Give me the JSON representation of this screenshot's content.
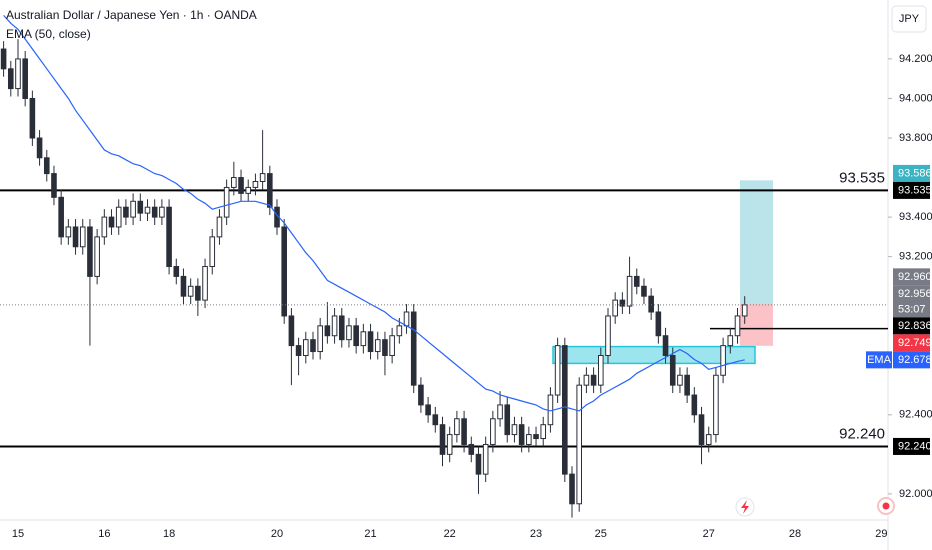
{
  "chart_data": {
    "type": "candlestick",
    "title": "Australian Dollar / Japanese Yen · 1h · OANDA",
    "subtitle": "EMA (50, close)",
    "currency": "JPY",
    "candle_color": "#2a2e39",
    "categories": [
      null,
      null,
      "15",
      null,
      null,
      null,
      null,
      null,
      null,
      null,
      null,
      null,
      null,
      null,
      "16",
      null,
      null,
      null,
      null,
      null,
      null,
      null,
      null,
      "18",
      null,
      null,
      null,
      null,
      null,
      null,
      null,
      null,
      null,
      null,
      null,
      null,
      null,
      null,
      "20",
      null,
      null,
      null,
      null,
      null,
      null,
      null,
      null,
      null,
      null,
      null,
      null,
      "21",
      null,
      null,
      null,
      null,
      null,
      null,
      null,
      null,
      null,
      null,
      "22",
      null,
      null,
      null,
      null,
      null,
      null,
      null,
      null,
      null,
      null,
      null,
      "23",
      null,
      null,
      null,
      null,
      null,
      null,
      null,
      null,
      "25",
      null,
      null,
      null,
      null,
      null,
      null,
      null,
      null,
      null,
      null,
      null,
      null,
      null,
      null,
      "27",
      null,
      null,
      null,
      null,
      null,
      null,
      null,
      null,
      null,
      null,
      null,
      "28",
      null,
      null,
      null,
      null,
      null,
      null,
      null,
      null,
      null,
      null,
      null,
      "29"
    ],
    "open": [
      94.25,
      94.15,
      94.05,
      94.2,
      94.0,
      93.8,
      93.7,
      93.62,
      93.5,
      93.3,
      93.35,
      93.25,
      93.35,
      93.1,
      93.3,
      93.4,
      93.35,
      93.45,
      93.4,
      93.48,
      93.42,
      93.45,
      93.4,
      93.45,
      93.15,
      93.1,
      93.0,
      93.05,
      92.98,
      93.15,
      93.3,
      93.4,
      93.55,
      93.6,
      93.52,
      93.55,
      93.58,
      93.62,
      93.45,
      93.35,
      92.9,
      92.75,
      92.7,
      92.78,
      92.72,
      92.85,
      92.8,
      92.9,
      92.78,
      92.85,
      92.75,
      92.82,
      92.72,
      92.78,
      92.7,
      92.8,
      92.85,
      92.92,
      92.55,
      92.45,
      92.4,
      92.35,
      92.2,
      92.3,
      92.38,
      92.25,
      92.2,
      92.1,
      92.25,
      92.38,
      92.45,
      92.3,
      92.35,
      92.25,
      92.3,
      92.28,
      92.35,
      92.5,
      92.75,
      92.1,
      91.95,
      92.55,
      92.6,
      92.55,
      92.7,
      92.9,
      92.98,
      92.95,
      93.1,
      93.05,
      93.0,
      92.92,
      92.8,
      92.7,
      92.55,
      92.6,
      92.5,
      92.4,
      92.25,
      92.3,
      92.6,
      92.75,
      92.8,
      92.9,
      null,
      null,
      null,
      null,
      null,
      null,
      null,
      null,
      null,
      null,
      null,
      null,
      null,
      null,
      null,
      null,
      null,
      null,
      null
    ],
    "high": [
      94.29,
      94.19,
      94.3,
      94.24,
      94.04,
      93.84,
      93.74,
      93.66,
      93.54,
      93.39,
      93.39,
      93.39,
      93.39,
      93.34,
      93.44,
      93.44,
      93.49,
      93.49,
      93.52,
      93.52,
      93.49,
      93.49,
      93.49,
      93.49,
      93.19,
      93.14,
      93.09,
      93.09,
      93.19,
      93.34,
      93.44,
      93.59,
      93.68,
      93.64,
      93.59,
      93.62,
      93.84,
      93.66,
      93.49,
      93.39,
      92.94,
      92.79,
      92.82,
      92.82,
      92.89,
      92.97,
      92.94,
      92.94,
      92.89,
      92.89,
      92.86,
      92.86,
      92.82,
      92.82,
      92.84,
      92.89,
      92.96,
      92.96,
      92.59,
      92.49,
      92.44,
      92.39,
      92.34,
      92.42,
      92.42,
      92.29,
      92.24,
      92.29,
      92.42,
      92.52,
      92.49,
      92.39,
      92.39,
      92.34,
      92.34,
      92.39,
      92.54,
      92.79,
      92.79,
      92.14,
      92.59,
      92.64,
      92.64,
      92.74,
      92.94,
      93.02,
      93.02,
      93.2,
      93.14,
      93.09,
      93.04,
      92.96,
      92.84,
      92.74,
      92.64,
      92.64,
      92.54,
      92.44,
      92.34,
      92.64,
      92.79,
      92.84,
      92.94,
      93.0,
      null,
      null,
      null,
      null,
      null,
      null,
      null,
      null,
      null,
      null,
      null,
      null,
      null,
      null,
      null,
      null,
      null,
      null,
      null
    ],
    "low": [
      94.11,
      94.01,
      94.01,
      93.96,
      93.76,
      93.66,
      93.58,
      93.46,
      93.26,
      93.26,
      93.21,
      93.21,
      92.75,
      93.06,
      93.26,
      93.31,
      93.31,
      93.36,
      93.36,
      93.38,
      93.38,
      93.36,
      93.36,
      93.11,
      93.06,
      92.96,
      92.96,
      92.9,
      92.94,
      93.11,
      93.26,
      93.36,
      93.51,
      93.48,
      93.48,
      93.51,
      93.54,
      93.41,
      93.31,
      92.86,
      92.55,
      92.6,
      92.66,
      92.68,
      92.68,
      92.76,
      92.76,
      92.74,
      92.74,
      92.71,
      92.71,
      92.68,
      92.68,
      92.6,
      92.66,
      92.76,
      92.81,
      92.51,
      92.41,
      92.36,
      92.31,
      92.14,
      92.16,
      92.26,
      92.21,
      92.16,
      92.0,
      92.06,
      92.21,
      92.34,
      92.26,
      92.26,
      92.21,
      92.21,
      92.24,
      92.24,
      92.31,
      92.46,
      92.06,
      91.88,
      91.91,
      92.51,
      92.51,
      92.51,
      92.66,
      92.86,
      92.91,
      92.91,
      93.01,
      92.96,
      92.88,
      92.76,
      92.66,
      92.51,
      92.51,
      92.46,
      92.36,
      92.15,
      92.21,
      92.26,
      92.56,
      92.71,
      92.76,
      92.86,
      null,
      null,
      null,
      null,
      null,
      null,
      null,
      null,
      null,
      null,
      null,
      null,
      null,
      null,
      null,
      null,
      null,
      null,
      null
    ],
    "close": [
      94.15,
      94.05,
      94.2,
      94.0,
      93.8,
      93.7,
      93.62,
      93.5,
      93.3,
      93.35,
      93.25,
      93.35,
      93.1,
      93.3,
      93.4,
      93.35,
      93.45,
      93.4,
      93.48,
      93.42,
      93.45,
      93.4,
      93.45,
      93.15,
      93.1,
      93.0,
      93.05,
      92.98,
      93.15,
      93.3,
      93.4,
      93.55,
      93.6,
      93.52,
      93.55,
      93.58,
      93.62,
      93.45,
      93.35,
      92.9,
      92.75,
      92.7,
      92.78,
      92.72,
      92.85,
      92.8,
      92.9,
      92.78,
      92.85,
      92.75,
      92.82,
      92.72,
      92.78,
      92.7,
      92.8,
      92.85,
      92.92,
      92.55,
      92.45,
      92.4,
      92.35,
      92.2,
      92.3,
      92.38,
      92.25,
      92.2,
      92.1,
      92.25,
      92.38,
      92.45,
      92.3,
      92.35,
      92.25,
      92.3,
      92.28,
      92.35,
      92.5,
      92.75,
      92.1,
      91.95,
      92.55,
      92.6,
      92.55,
      92.7,
      92.9,
      92.98,
      92.95,
      93.1,
      93.05,
      93.0,
      92.92,
      92.8,
      92.7,
      92.55,
      92.6,
      92.5,
      92.4,
      92.25,
      92.3,
      92.6,
      92.75,
      92.8,
      92.9,
      92.956,
      null,
      null,
      null,
      null,
      null,
      null,
      null,
      null,
      null,
      null,
      null,
      null,
      null,
      null,
      null,
      null,
      null,
      null,
      null
    ],
    "countdown": "53:07",
    "price_color": "#787b86",
    "ema": {
      "tag": "EMA",
      "color": "#2962ff",
      "values": [
        94.42,
        94.38,
        94.35,
        94.3,
        94.25,
        94.2,
        94.15,
        94.1,
        94.05,
        94.0,
        93.94,
        93.89,
        93.84,
        93.79,
        93.74,
        93.72,
        93.71,
        93.69,
        93.67,
        93.66,
        93.64,
        93.62,
        93.61,
        93.59,
        93.57,
        93.54,
        93.52,
        93.49,
        93.47,
        93.44,
        93.45,
        93.46,
        93.47,
        93.48,
        93.48,
        93.48,
        93.47,
        93.46,
        93.41,
        93.37,
        93.32,
        93.27,
        93.22,
        93.18,
        93.13,
        93.08,
        93.06,
        93.04,
        93.02,
        93.0,
        92.98,
        92.96,
        92.94,
        92.92,
        92.89,
        92.87,
        92.85,
        92.83,
        92.8,
        92.77,
        92.74,
        92.71,
        92.68,
        92.65,
        92.62,
        92.59,
        92.56,
        92.53,
        92.52,
        92.5,
        92.49,
        92.48,
        92.47,
        92.46,
        92.45,
        92.43,
        92.42,
        92.43,
        92.44,
        92.43,
        92.42,
        92.45,
        92.47,
        92.5,
        92.52,
        92.54,
        92.56,
        92.58,
        92.61,
        92.63,
        92.65,
        92.67,
        92.69,
        92.71,
        92.73,
        92.71,
        92.68,
        92.66,
        92.63,
        92.64,
        92.65,
        92.66,
        92.67,
        92.678,
        null,
        null,
        null,
        null,
        null,
        null,
        null,
        null,
        null,
        null,
        null,
        null,
        null,
        null,
        null,
        null,
        null,
        null,
        null
      ]
    },
    "ylim": [
      91.868,
      94.498
    ],
    "yticks": [
      {
        "value": 92.0,
        "label": "92.000"
      },
      {
        "value": 92.4,
        "label": "92.400"
      },
      {
        "value": 93.2,
        "label": "93.200"
      },
      {
        "value": 93.4,
        "label": "93.400"
      },
      {
        "value": 93.8,
        "label": "93.800"
      },
      {
        "value": 94.0,
        "label": "94.000"
      },
      {
        "value": 94.2,
        "label": "94.200"
      }
    ],
    "levels": [
      93.535,
      {
        "value": 92.24,
        "label": "92.240"
      }
    ],
    "level_color": "#000000",
    "order_line": 92.836,
    "zone": {
      "low": 92.66,
      "high": 92.745,
      "color": "#26c6da"
    },
    "position": {
      "target": 93.586,
      "entry": {
        "value": 92.96,
        "label": "92.960"
      },
      "stop": 92.749,
      "target_color": "#3bb3c3",
      "stop_color": "#f23645"
    }
  }
}
